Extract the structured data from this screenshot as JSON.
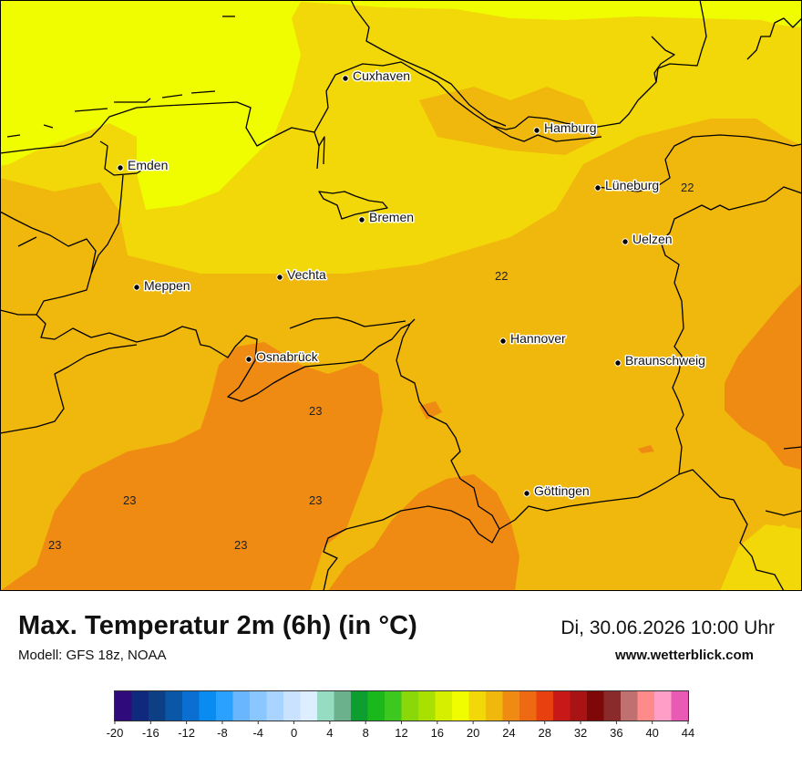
{
  "title": "Max. Temperatur 2m (6h) (in °C)",
  "model": "Modell: GFS 18z, NOAA",
  "datetime": "Di, 30.06.2026 10:00 Uhr",
  "website": "www.wetterblick.com",
  "colors": {
    "t18": "#f0fc00",
    "t20": "#f2d808",
    "t22": "#f0b70c",
    "t24": "#ef8b12",
    "border": "#000000"
  },
  "cities": [
    {
      "name": "Cuxhaven"
    },
    {
      "name": "Hamburg"
    },
    {
      "name": "Emden"
    },
    {
      "name": "Lüneburg"
    },
    {
      "name": "Bremen"
    },
    {
      "name": "Uelzen"
    },
    {
      "name": "Vechta"
    },
    {
      "name": "Meppen"
    },
    {
      "name": "Hannover"
    },
    {
      "name": "Osnabrück"
    },
    {
      "name": "Braunschweig"
    },
    {
      "name": "Göttingen"
    }
  ],
  "contour_labels": [
    "22",
    "22",
    "23",
    "23",
    "23",
    "23",
    "23"
  ],
  "scale": {
    "colors": [
      "#2e0a7a",
      "#0f2a7c",
      "#0d3f84",
      "#0a57a8",
      "#0a6fd0",
      "#0a8bf0",
      "#2aa0ff",
      "#69b6ff",
      "#8ac6ff",
      "#a9d4ff",
      "#c9e2ff",
      "#dceeff",
      "#96dcc2",
      "#6bb18c",
      "#0e9e2f",
      "#1ab81a",
      "#3cc81e",
      "#8bd80a",
      "#a8e000",
      "#d6ee00",
      "#f0fc00",
      "#f2d808",
      "#f0b70c",
      "#ef8b12",
      "#ee6a12",
      "#e8400f",
      "#c81818",
      "#a81414",
      "#7e0808",
      "#8a2a2a",
      "#c07070",
      "#ff8a8a",
      "#ff9ec6",
      "#e85ab4"
    ],
    "ticks": [
      "-20",
      "-16",
      "-12",
      "-8",
      "-4",
      "0",
      "4",
      "8",
      "12",
      "16",
      "20",
      "24",
      "28",
      "32",
      "36",
      "40",
      "44"
    ]
  }
}
